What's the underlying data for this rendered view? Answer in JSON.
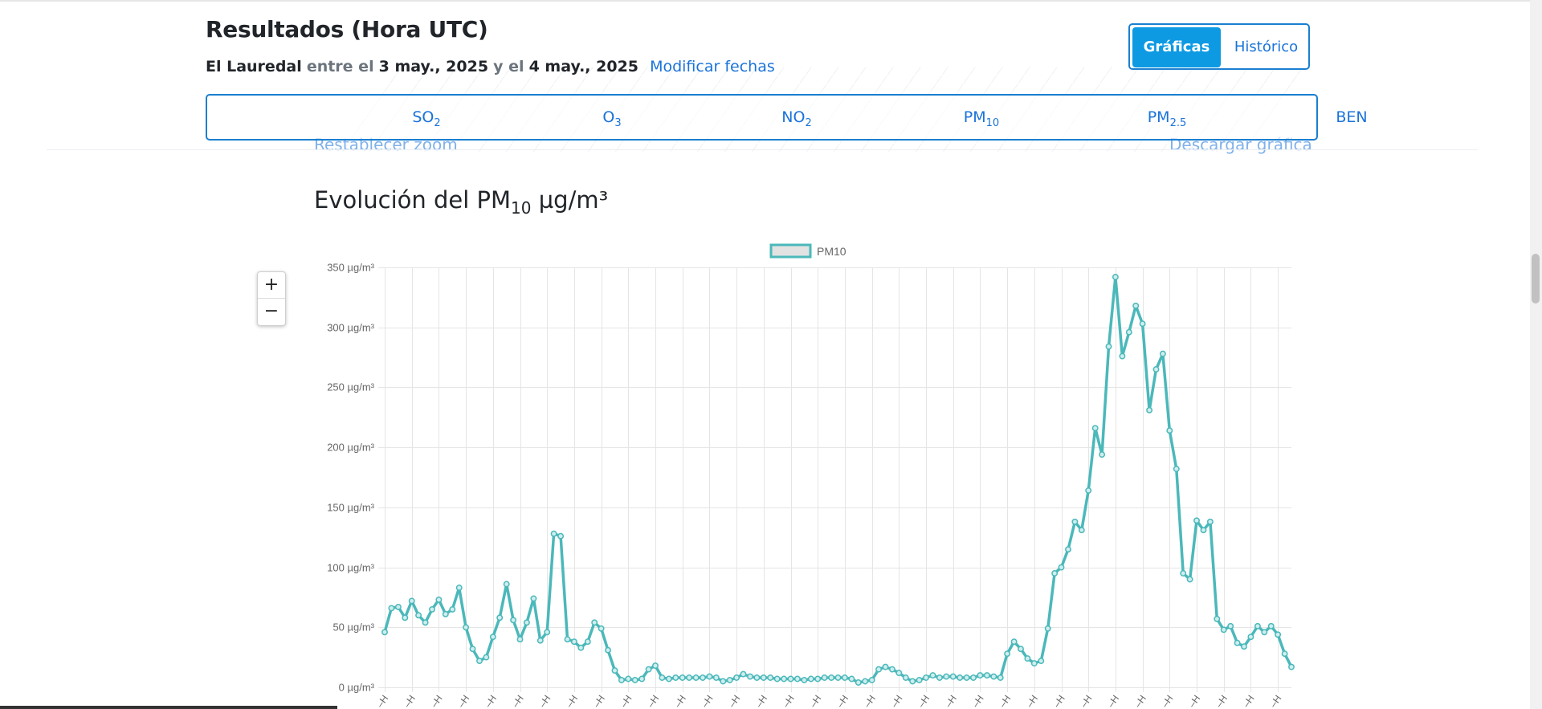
{
  "header": {
    "title": "Resultados (Hora UTC)",
    "station": "El Lauredal",
    "between": "entre el",
    "start_date": "3 may., 2025",
    "and": "y el",
    "end_date": "4 may., 2025",
    "modify_link": "Modificar fechas"
  },
  "view_toggle": {
    "charts_label": "Gráficas",
    "history_label": "Histórico",
    "active": "Gráficas"
  },
  "pollutant_tabs": [
    {
      "label": "SO",
      "sub": "2"
    },
    {
      "label": "O",
      "sub": "3"
    },
    {
      "label": "NO",
      "sub": "2"
    },
    {
      "label": "PM",
      "sub": "10"
    },
    {
      "label": "PM",
      "sub": "2.5"
    },
    {
      "label": "BEN",
      "sub": ""
    }
  ],
  "behind_links": {
    "reset_zoom": "Restablecer zoom",
    "download_chart": "Descargar gráfica"
  },
  "chart_header": {
    "prefix": "Evolución del PM",
    "sub": "10",
    "suffix": " µg/m³"
  },
  "zoom_controls": {
    "plus": "+",
    "minus": "−"
  },
  "colors": {
    "line": "#4bb8ba",
    "accent": "#1a7fd0",
    "active_button": "#0d9ae3",
    "link": "#1a73d9"
  },
  "chart_data": {
    "type": "line",
    "title": "Evolución del PM10 µg/m³",
    "legend": [
      "PM10"
    ],
    "legend_position": "top-center",
    "grid": true,
    "ylim": [
      0,
      350
    ],
    "y_ticks": [
      "0 µg/m³",
      "50 µg/m³",
      "100 µg/m³",
      "150 µg/m³",
      "200 µg/m³",
      "250 µg/m³",
      "300 µg/m³",
      "350 µg/m³"
    ],
    "series": [
      {
        "name": "PM10",
        "values": [
          46,
          66,
          67,
          58,
          72,
          60,
          54,
          65,
          73,
          61,
          65,
          83,
          50,
          32,
          22,
          25,
          42,
          58,
          86,
          56,
          40,
          54,
          74,
          39,
          46,
          128,
          126,
          40,
          38,
          33,
          38,
          54,
          49,
          31,
          14,
          6,
          7,
          6,
          7,
          15,
          18,
          8,
          7,
          8,
          8,
          8,
          8,
          8,
          9,
          8,
          5,
          6,
          8,
          11,
          9,
          8,
          8,
          8,
          7,
          7,
          7,
          7,
          6,
          7,
          7,
          8,
          8,
          8,
          8,
          7,
          4,
          5,
          6,
          15,
          17,
          15,
          12,
          8,
          5,
          6,
          8,
          10,
          8,
          9,
          9,
          8,
          8,
          8,
          10,
          10,
          9,
          8,
          28,
          38,
          32,
          24,
          20,
          22,
          49,
          95,
          100,
          115,
          138,
          131,
          164,
          216,
          194,
          284,
          342,
          276,
          296,
          318,
          303,
          231,
          265,
          278,
          214,
          182,
          95,
          90,
          139,
          131,
          138,
          57,
          48,
          51,
          37,
          34,
          42,
          51,
          46,
          51,
          44,
          28,
          17
        ]
      }
    ]
  }
}
